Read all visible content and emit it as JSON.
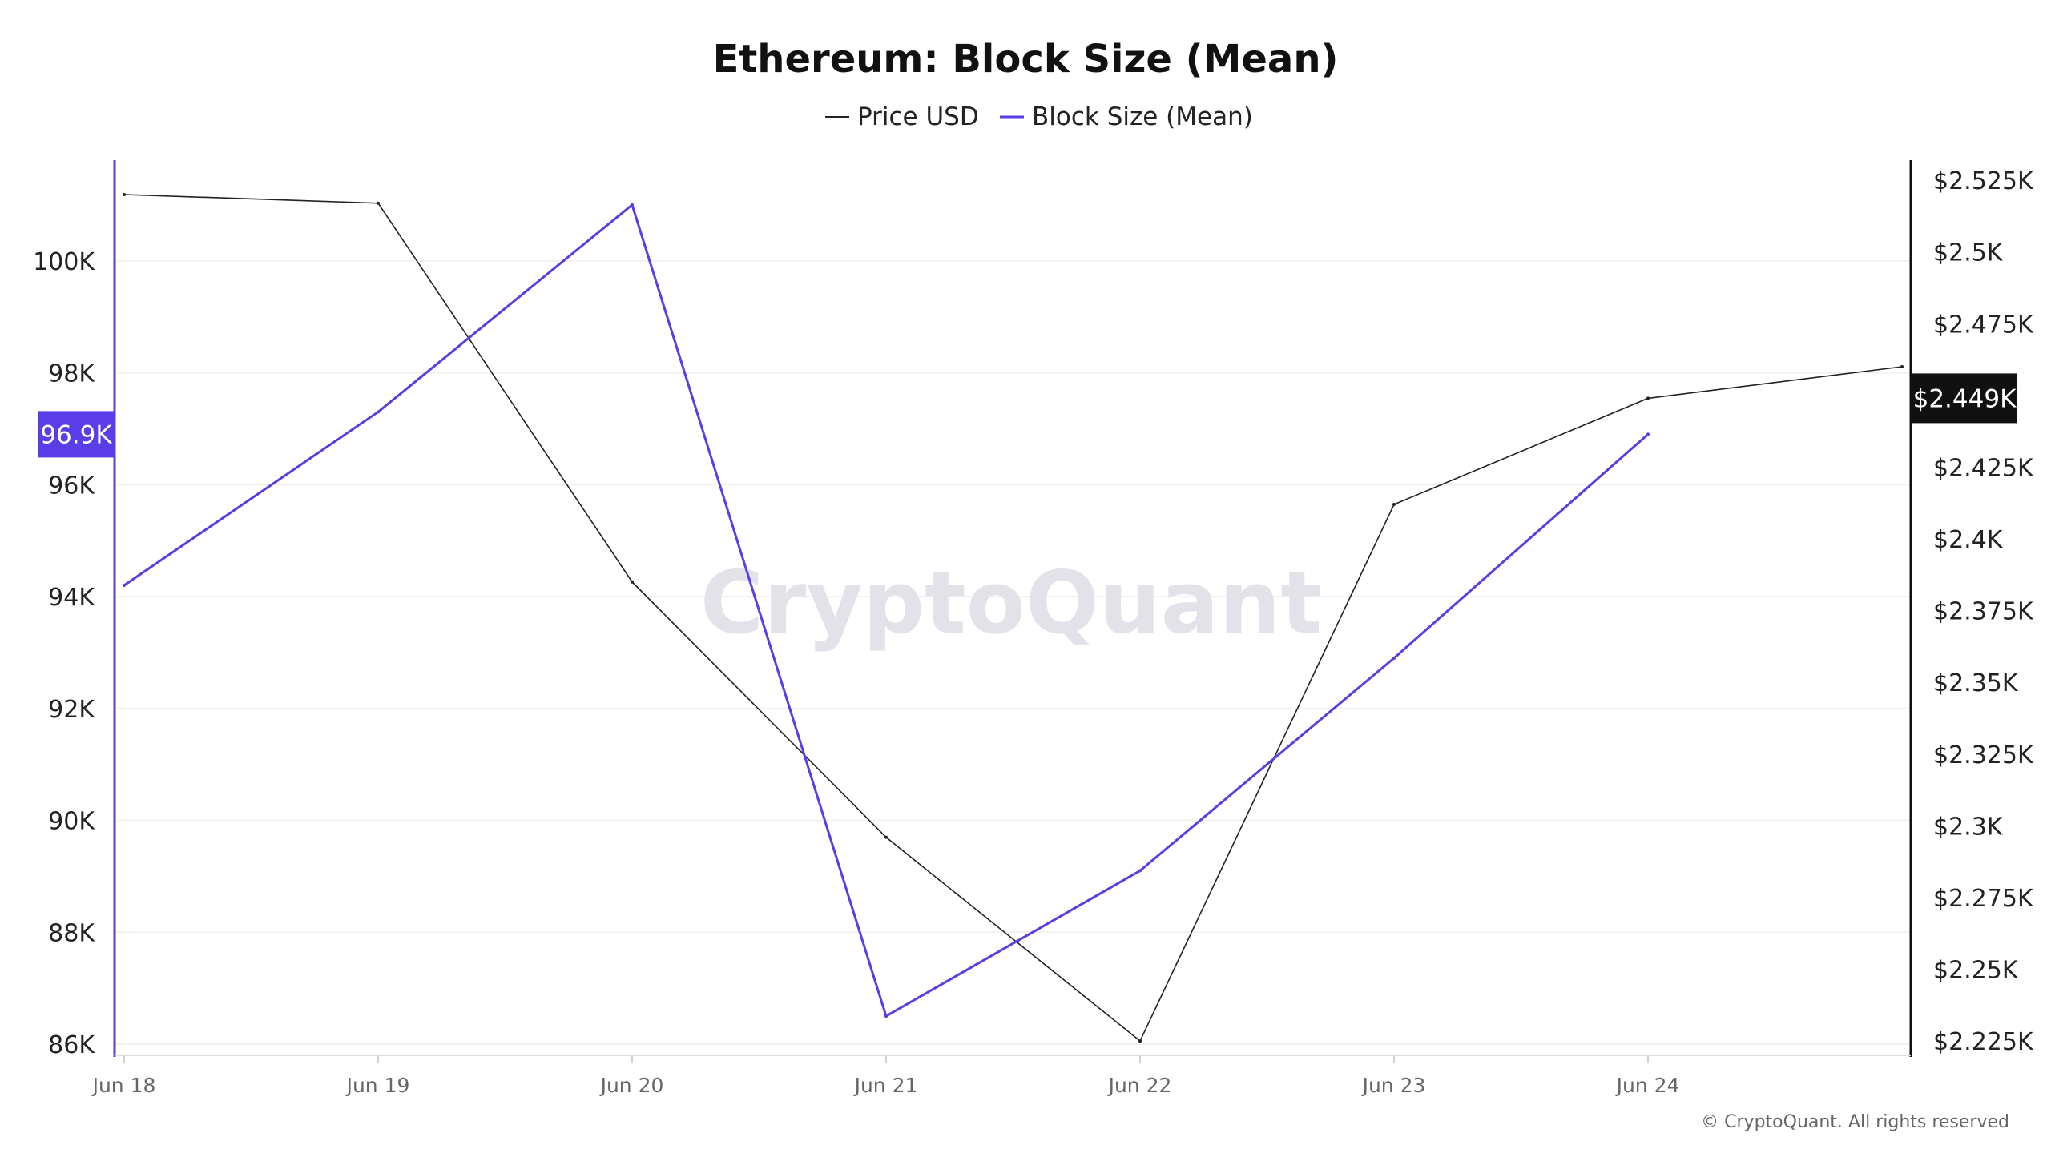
{
  "colors": {
    "price": "#222222",
    "block_size": "#5a3de6",
    "grid": "#f1f1f3",
    "left_axis": "#5a3de6",
    "right_axis": "#111111",
    "left_badge": "#5a3de6",
    "right_badge": "#111111"
  },
  "watermark": "CryptoQuant",
  "copyright": "© CryptoQuant. All rights reserved",
  "chart_data": {
    "type": "line",
    "title": "Ethereum: Block Size (Mean)",
    "categories": [
      "Jun 18",
      "Jun 19",
      "Jun 20",
      "Jun 21",
      "Jun 22",
      "Jun 23",
      "Jun 24",
      ""
    ],
    "series": [
      {
        "name": "Price USD",
        "axis": "right",
        "values": [
          2.52,
          2.517,
          2.385,
          2.296,
          2.225,
          2.412,
          2.449,
          2.46
        ],
        "unit": "K USD"
      },
      {
        "name": "Block Size (Mean)",
        "axis": "left",
        "values": [
          94.2,
          97.3,
          101.0,
          86.5,
          89.1,
          92.9,
          96.9,
          null
        ],
        "unit": "K"
      }
    ],
    "left_axis": {
      "ticks": [
        "86K",
        "88K",
        "90K",
        "92K",
        "94K",
        "96K",
        "98K",
        "100K"
      ],
      "tick_values": [
        86,
        88,
        90,
        92,
        94,
        96,
        98,
        100
      ],
      "ylim": [
        85.8,
        101.8
      ],
      "current_value_label": "96.9K",
      "current_value": 96.9
    },
    "right_axis": {
      "ticks": [
        "$2.225K",
        "$2.25K",
        "$2.275K",
        "$2.3K",
        "$2.325K",
        "$2.35K",
        "$2.375K",
        "$2.4K",
        "$2.425K",
        "$2.475K",
        "$2.5K",
        "$2.525K"
      ],
      "tick_values": [
        2.225,
        2.25,
        2.275,
        2.3,
        2.325,
        2.35,
        2.375,
        2.4,
        2.425,
        2.475,
        2.5,
        2.525
      ],
      "ylim": [
        2.22,
        2.532
      ],
      "current_value_label": "$2.449K",
      "current_value": 2.449
    },
    "legend_position": "top-center",
    "grid": true
  }
}
